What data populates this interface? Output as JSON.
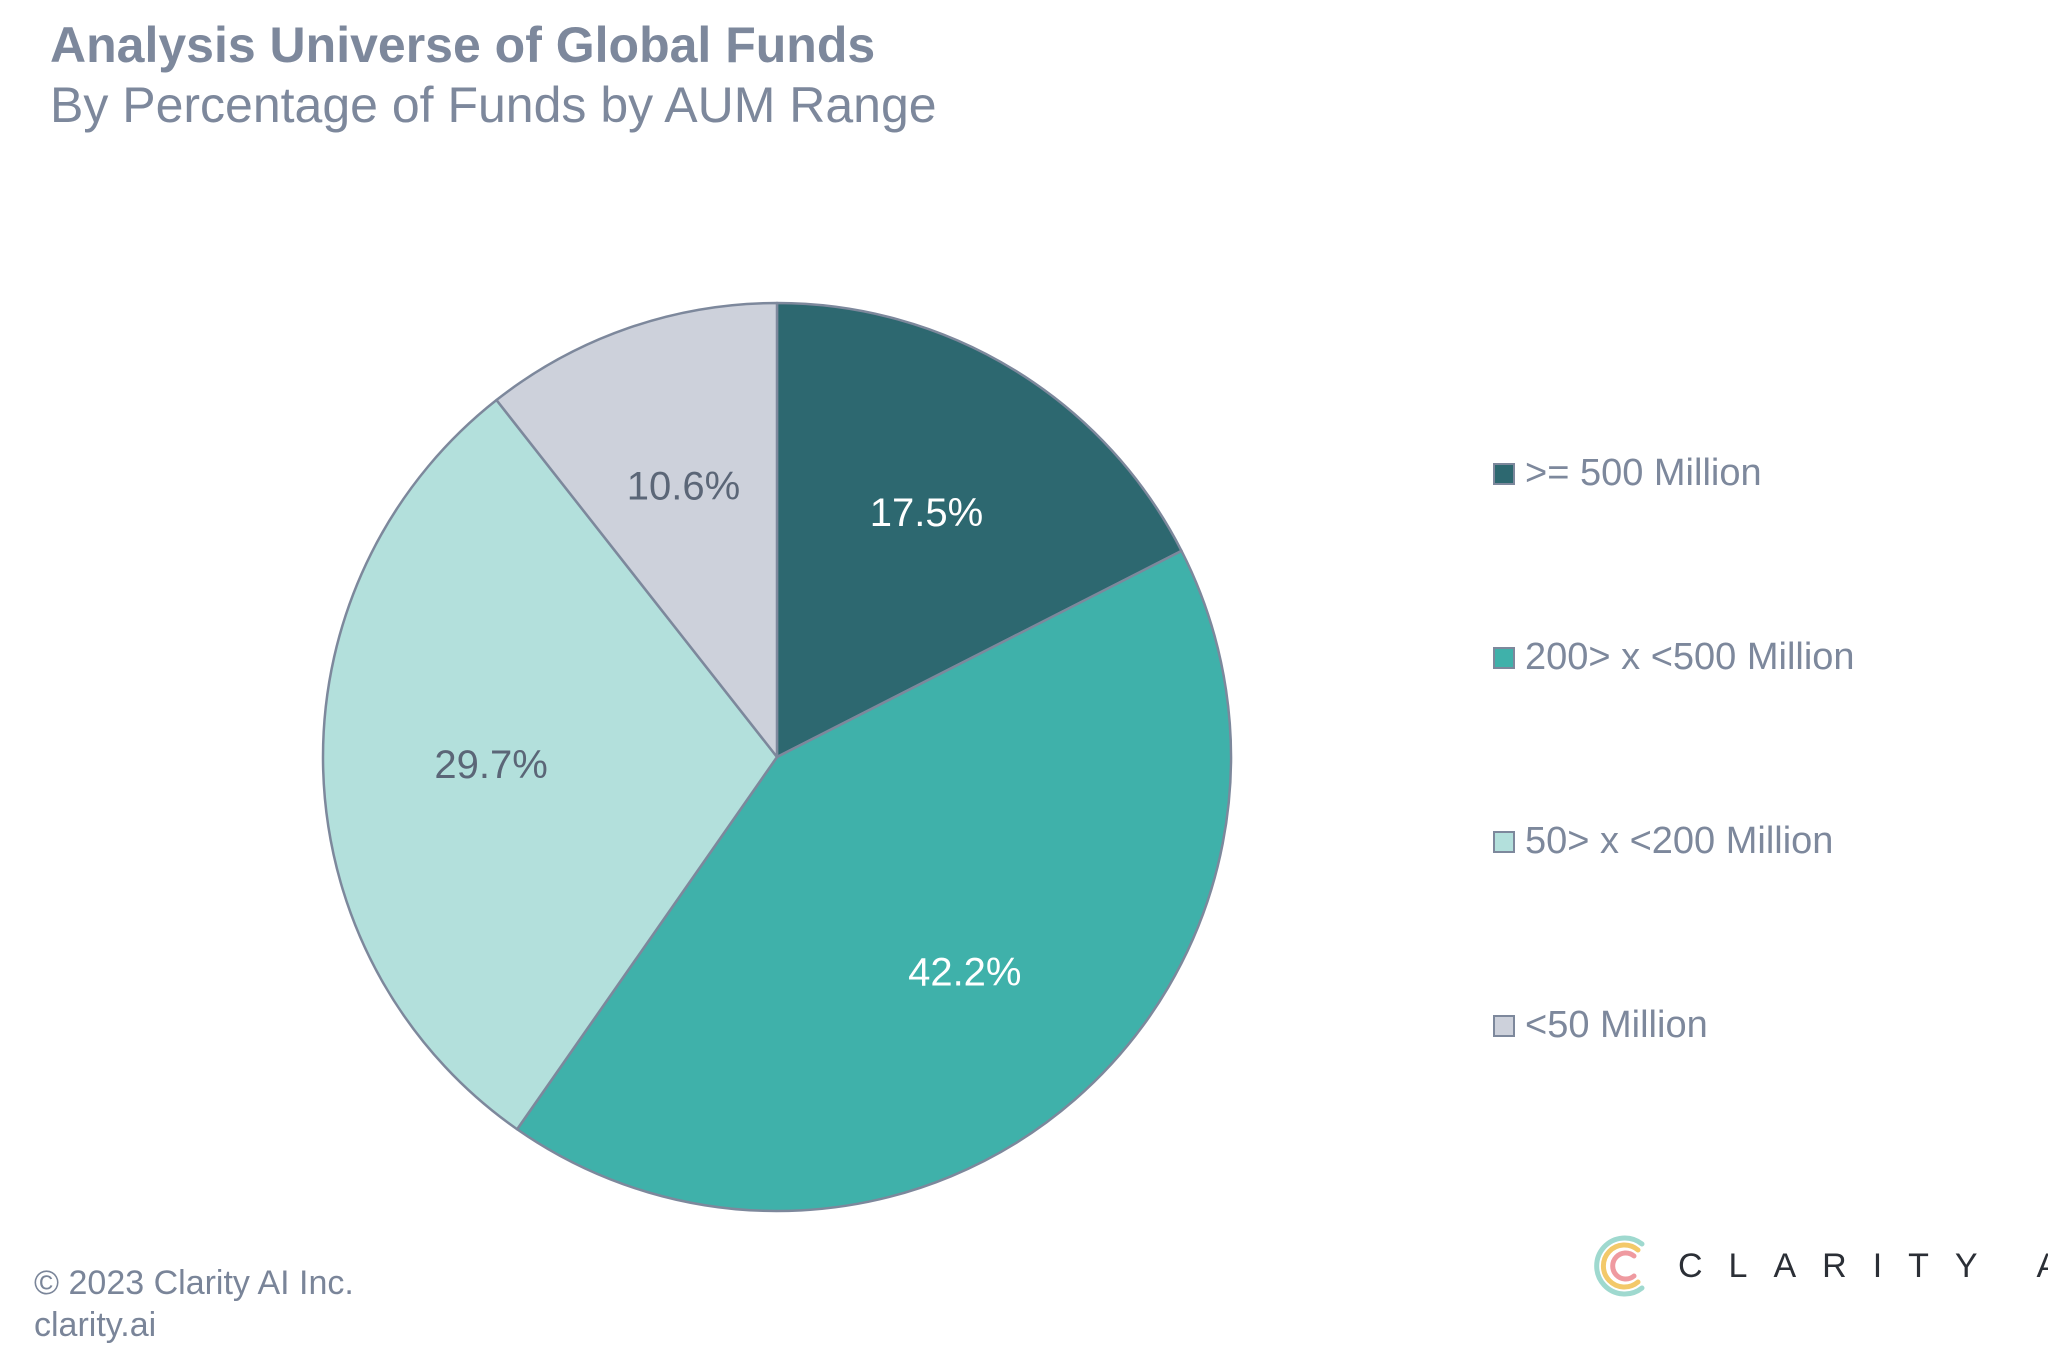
{
  "header": {
    "title": "Analysis Universe of Global Funds",
    "subtitle": "By Percentage of Funds by AUM Range"
  },
  "chart_data": {
    "type": "pie",
    "title": "Analysis Universe of Global Funds",
    "subtitle": "By Percentage of Funds by AUM Range",
    "legend_position": "right",
    "slices": [
      {
        "name": ">= 500 Million",
        "value": 17.5,
        "label": "17.5%",
        "color": "#2d6870",
        "label_color": "#ffffff"
      },
      {
        "name": "200> x <500 Million",
        "value": 42.2,
        "label": "42.2%",
        "color": "#3fb1aa",
        "label_color": "#ffffff"
      },
      {
        "name": "50> x <200 Million",
        "value": 29.7,
        "label": "29.7%",
        "color": "#b3e0dc",
        "label_color": "#5b6677"
      },
      {
        "name": "<50 Million",
        "value": 10.6,
        "label": "10.6%",
        "color": "#cdd1db",
        "label_color": "#5b6677"
      }
    ]
  },
  "footer": {
    "copyright": "© 2023 Clarity AI Inc.",
    "website": "clarity.ai"
  },
  "brand": {
    "name": "CLARITY AI",
    "logo_icon": "clarity-c-logo-icon"
  }
}
